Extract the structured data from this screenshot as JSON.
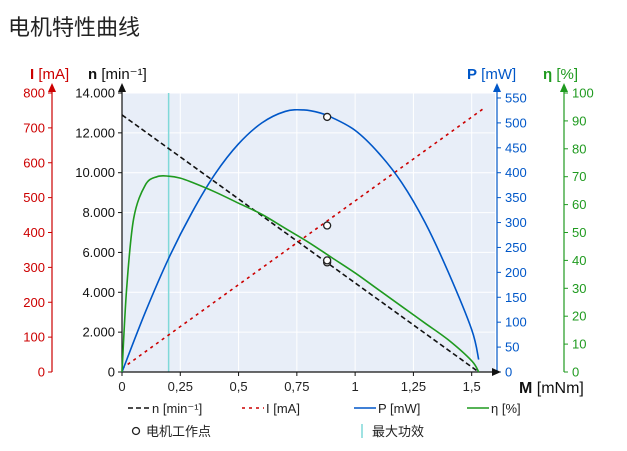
{
  "page_title": "电机特性曲线",
  "colors": {
    "n": "#111111",
    "I": "#cc0000",
    "P": "#0057c8",
    "eta": "#1f9a1f",
    "max_eff": "#7fd8d8",
    "plot_bg": "#e8eef8",
    "grid": "#ffffff"
  },
  "chart_data": {
    "type": "line",
    "title": "电机特性曲线",
    "x_axis": {
      "label_bold": "M",
      "label_unit": "[mNm]",
      "ticks": [
        "0",
        "0,25",
        "0,5",
        "0,75",
        "1",
        "1,25",
        "1,5"
      ],
      "tick_values": [
        0,
        0.25,
        0.5,
        0.75,
        1,
        1.25,
        1.5
      ],
      "range": [
        0,
        1.6
      ]
    },
    "axes": {
      "I": {
        "label_bold": "I",
        "label_unit": "[mA]",
        "range": [
          0,
          800
        ],
        "ticks": [
          "0",
          "100",
          "200",
          "300",
          "400",
          "500",
          "600",
          "700",
          "800"
        ],
        "tick_values": [
          0,
          100,
          200,
          300,
          400,
          500,
          600,
          700,
          800
        ]
      },
      "n": {
        "label_bold": "n",
        "label_unit": "[min⁻¹]",
        "range": [
          0,
          14000
        ],
        "ticks": [
          "0",
          "2.000",
          "4.000",
          "6.000",
          "8.000",
          "10.000",
          "12.000",
          "14.000"
        ],
        "tick_values": [
          0,
          2000,
          4000,
          6000,
          8000,
          10000,
          12000,
          14000
        ]
      },
      "P": {
        "label_bold": "P",
        "label_unit": "[mW]",
        "range": [
          0,
          560
        ],
        "ticks": [
          "0",
          "50",
          "100",
          "150",
          "200",
          "250",
          "300",
          "350",
          "400",
          "450",
          "500",
          "550"
        ],
        "tick_values": [
          0,
          50,
          100,
          150,
          200,
          250,
          300,
          350,
          400,
          450,
          500,
          550
        ]
      },
      "eta": {
        "label_bold": "η",
        "label_unit": "[%]",
        "range": [
          0,
          100
        ],
        "ticks": [
          "0",
          "10",
          "20",
          "30",
          "40",
          "50",
          "60",
          "70",
          "80",
          "90",
          "100"
        ],
        "tick_values": [
          0,
          10,
          20,
          30,
          40,
          50,
          60,
          70,
          80,
          90,
          100
        ]
      }
    },
    "series": [
      {
        "key": "n",
        "name": "n [min⁻¹]",
        "axis": "n",
        "dash": "5,3",
        "x": [
          0,
          1.53
        ],
        "y": [
          12900,
          0
        ]
      },
      {
        "key": "I",
        "name": "I [mA]",
        "axis": "I",
        "dash": "3,4",
        "x": [
          0,
          1.55
        ],
        "y": [
          10,
          755
        ]
      },
      {
        "key": "P",
        "name": "P [mW]",
        "axis": "P",
        "dash": "",
        "x": [
          0,
          0.1,
          0.2,
          0.3,
          0.4,
          0.5,
          0.6,
          0.7,
          0.78,
          0.85,
          0.9,
          1.0,
          1.1,
          1.2,
          1.3,
          1.4,
          1.5,
          1.53
        ],
        "y": [
          0,
          120,
          228,
          320,
          398,
          458,
          500,
          523,
          526,
          520,
          511,
          485,
          440,
          380,
          300,
          200,
          85,
          25
        ]
      },
      {
        "key": "eta",
        "name": "η [%]",
        "axis": "eta",
        "dash": "",
        "x": [
          0,
          0.02,
          0.05,
          0.1,
          0.15,
          0.2,
          0.25,
          0.3,
          0.4,
          0.5,
          0.6,
          0.7,
          0.8,
          0.9,
          1.0,
          1.1,
          1.2,
          1.3,
          1.4,
          1.5,
          1.53
        ],
        "y": [
          0,
          30,
          55,
          67,
          70,
          70.2,
          69.5,
          68,
          64.5,
          60.5,
          56.5,
          51.5,
          46.5,
          41,
          35.5,
          29.5,
          23.5,
          17.5,
          11.5,
          4,
          0
        ]
      }
    ],
    "operating_points": [
      {
        "axis": "P",
        "x": 0.88,
        "y": 512
      },
      {
        "axis": "I",
        "x": 0.88,
        "y": 420
      },
      {
        "axis": "n",
        "x": 0.88,
        "y": 5500
      },
      {
        "axis": "eta",
        "x": 0.88,
        "y": 40
      }
    ],
    "max_efficiency_x": 0.2,
    "legend": [
      {
        "key": "n",
        "label": "n [min⁻¹]"
      },
      {
        "key": "I",
        "label": "I [mA]"
      },
      {
        "key": "P",
        "label": "P [mW]"
      },
      {
        "key": "eta",
        "label": "η [%]"
      },
      {
        "key": "op",
        "label": "电机工作点"
      },
      {
        "key": "max_eff",
        "label": "最大功效"
      }
    ],
    "legend_placement": "bottom",
    "grid": true
  }
}
